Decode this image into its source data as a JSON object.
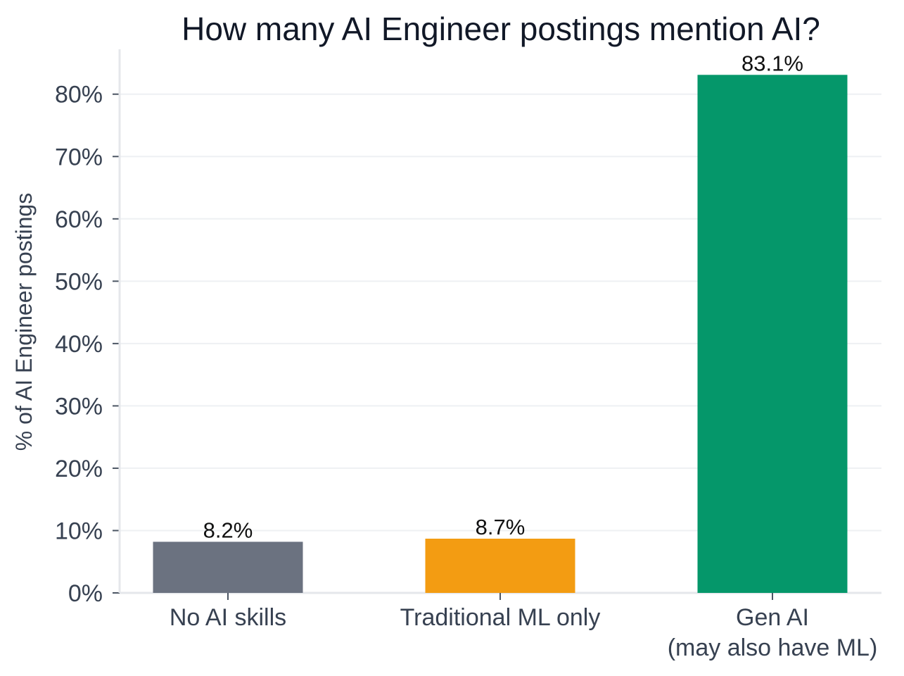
{
  "chart_data": {
    "type": "bar",
    "title": "How many AI Engineer postings mention AI?",
    "xlabel": "",
    "ylabel": "% of AI Engineer postings",
    "categories": [
      [
        "No AI skills"
      ],
      [
        "Traditional ML only"
      ],
      [
        "Gen AI",
        "(may also have ML)"
      ]
    ],
    "values": [
      8.2,
      8.7,
      83.1
    ],
    "value_labels": [
      "8.2%",
      "8.7%",
      "83.1%"
    ],
    "bar_colors": [
      "#6b7280",
      "#f39c12",
      "#05976a"
    ],
    "y_ticks": [
      0,
      10,
      20,
      30,
      40,
      50,
      60,
      70,
      80
    ],
    "y_tick_labels": [
      "0%",
      "10%",
      "20%",
      "30%",
      "40%",
      "50%",
      "60%",
      "70%",
      "80%"
    ],
    "ylim": [
      0,
      87.2
    ],
    "grid": true
  }
}
